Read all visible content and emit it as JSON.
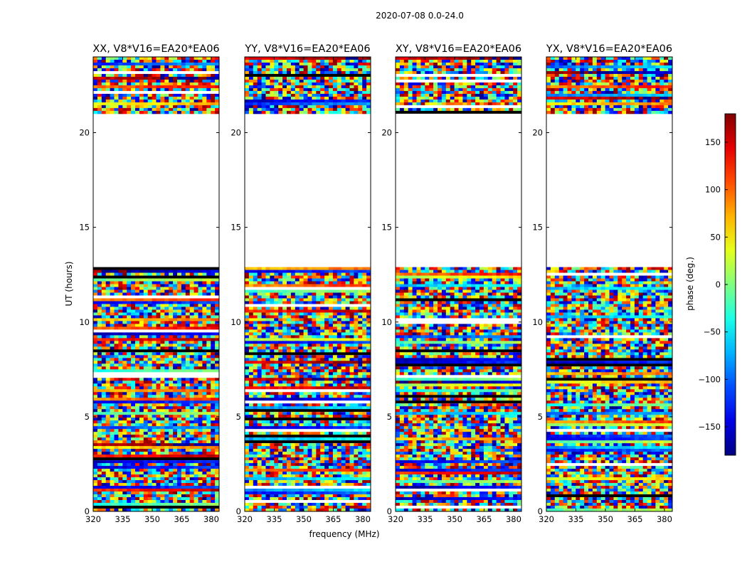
{
  "chart_data": {
    "type": "heatmap",
    "suptitle": "2020-07-08 0.0-24.0",
    "xlabel": "frequency (MHz)",
    "ylabel": "UT (hours)",
    "xlim": [
      320,
      384
    ],
    "ylim": [
      0,
      24
    ],
    "xticks": [
      320,
      335,
      350,
      365,
      380
    ],
    "yticks": [
      0,
      5,
      10,
      15,
      20
    ],
    "colorbar": {
      "label": "phase (deg.)",
      "range": [
        -180,
        180
      ],
      "ticks": [
        -150,
        -100,
        -50,
        0,
        50,
        100,
        150
      ],
      "colormap": "jet"
    },
    "panels": [
      {
        "title": "XX, V8*V16=EA20*EA06",
        "polarization": "XX"
      },
      {
        "title": "YY, V8*V16=EA20*EA06",
        "polarization": "YY"
      },
      {
        "title": "XY, V8*V16=EA20*EA06",
        "polarization": "XY"
      },
      {
        "title": "YX, V8*V16=EA20*EA06",
        "polarization": "YX"
      }
    ],
    "data_coverage_ut_hours": [
      [
        0.0,
        12.9
      ],
      [
        21.0,
        24.0
      ]
    ],
    "no_data_ut_hours": [
      12.9,
      21.0
    ]
  }
}
